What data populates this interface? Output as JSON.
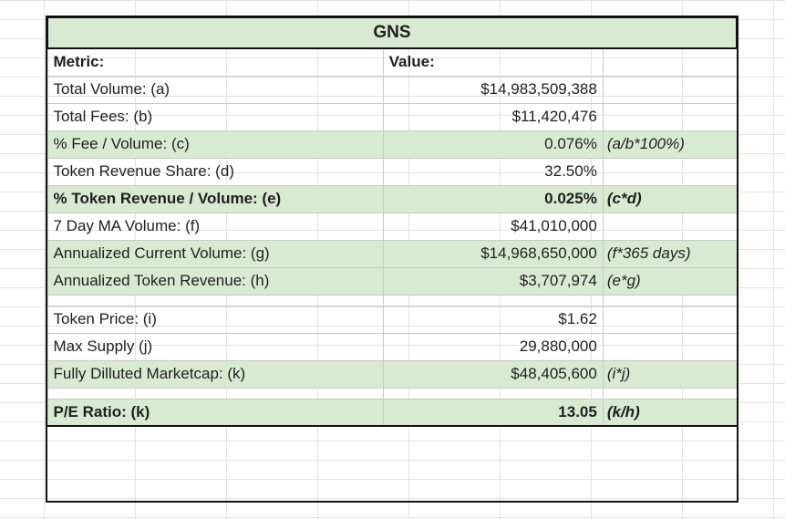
{
  "table": {
    "title": "GNS",
    "headers": [
      "Metric:",
      "Value:",
      ""
    ],
    "rows": [
      {
        "metric": "Total Volume: (a)",
        "value": "$14,983,509,388",
        "note": "",
        "green": false,
        "bold": false
      },
      {
        "metric": "Total Fees: (b)",
        "value": "$11,420,476",
        "note": "",
        "green": false,
        "bold": false
      },
      {
        "metric": "% Fee / Volume: (c)",
        "value": "0.076%",
        "note": "(a/b*100%)",
        "green": true,
        "bold": false
      },
      {
        "metric": "Token Revenue Share: (d)",
        "value": "32.50%",
        "note": "",
        "green": false,
        "bold": false
      },
      {
        "metric": "% Token Revenue / Volume: (e)",
        "value": "0.025%",
        "note": "(c*d)",
        "green": true,
        "bold": true
      },
      {
        "metric": "7 Day MA Volume: (f)",
        "value": "$41,010,000",
        "note": "",
        "green": false,
        "bold": false
      },
      {
        "metric": "Annualized Current Volume: (g)",
        "value": "$14,968,650,000",
        "note": "(f*365 days)",
        "green": true,
        "bold": false
      },
      {
        "metric": "Annualized Token Revenue: (h)",
        "value": "$3,707,974",
        "note": "(e*g)",
        "green": true,
        "bold": false
      },
      {
        "spacer": true
      },
      {
        "metric": "Token Price: (i)",
        "value": "$1.62",
        "note": "",
        "green": false,
        "bold": false
      },
      {
        "metric": "Max Supply (j)",
        "value": "29,880,000",
        "note": "",
        "green": false,
        "bold": false
      },
      {
        "metric": "Fully Dilluted Marketcap: (k)",
        "value": "$48,405,600",
        "note": "(i*j)",
        "green": true,
        "bold": false
      },
      {
        "spacer": true
      },
      {
        "metric": "P/E Ratio: (k)",
        "value": "13.05",
        "note": "(k/h)",
        "green": true,
        "bold": true
      }
    ]
  },
  "colors": {
    "highlight_green": "#d9ead3",
    "border": "#111111",
    "grid": "#e3e3e3"
  }
}
